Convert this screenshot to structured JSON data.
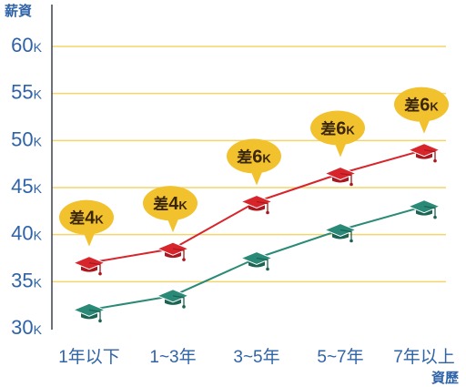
{
  "chart_data": {
    "type": "line",
    "ylabel": "薪資",
    "xlabel": "資歷",
    "categories": [
      "1年以下",
      "1~3年",
      "3~5年",
      "5~7年",
      "7年以上"
    ],
    "ylim": [
      30,
      60
    ],
    "yticks": [
      30,
      35,
      40,
      45,
      50,
      55,
      60
    ],
    "ytick_suffix": "K",
    "grid": true,
    "grid_color": "#f3d56c",
    "axis_label_color": "#2f63a7",
    "marker_icon": "graduation-cap-icon",
    "series": [
      {
        "values": [
          37,
          38.5,
          43.5,
          46.5,
          49
        ],
        "color": "#d7252b",
        "marker_shade": "#a8181e"
      },
      {
        "values": [
          32,
          33.5,
          37.5,
          40.5,
          43
        ],
        "color": "#2b8a77",
        "marker_shade": "#1c6354"
      }
    ],
    "annotation_color": "#f2c12e",
    "annotations": [
      {
        "prefix": "差",
        "value": "4",
        "unit": "K"
      },
      {
        "prefix": "差",
        "value": "4",
        "unit": "K"
      },
      {
        "prefix": "差",
        "value": "6",
        "unit": "K"
      },
      {
        "prefix": "差",
        "value": "6",
        "unit": "K"
      },
      {
        "prefix": "差",
        "value": "6",
        "unit": "K"
      }
    ]
  }
}
